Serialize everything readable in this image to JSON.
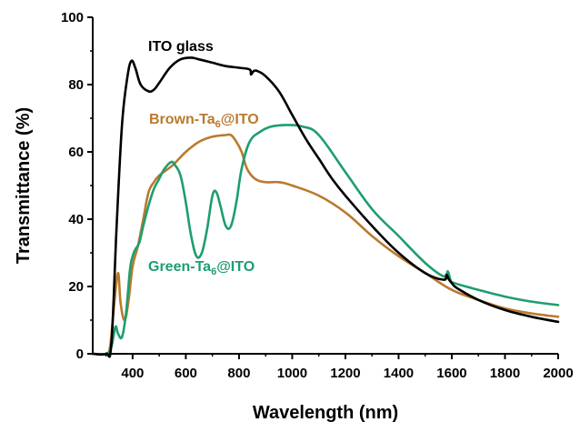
{
  "chart_data": {
    "type": "line",
    "xlabel": "Wavelength (nm)",
    "ylabel": "Transmittance (%)",
    "xlim": [
      250,
      2000
    ],
    "ylim": [
      0,
      100
    ],
    "x_ticks": [
      400,
      600,
      800,
      1000,
      1200,
      1400,
      1600,
      1800,
      2000
    ],
    "y_ticks": [
      0,
      20,
      40,
      60,
      80,
      100
    ],
    "grid": false,
    "legend": "inline labels",
    "series": [
      {
        "name": "ITO glass",
        "label_main": "ITO glass",
        "label_sub": "",
        "label_suffix": "",
        "color": "#000000",
        "x": [
          250,
          300,
          320,
          340,
          360,
          380,
          395,
          410,
          430,
          460,
          480,
          500,
          540,
          580,
          620,
          650,
          700,
          750,
          800,
          840,
          845,
          855,
          870,
          900,
          950,
          1000,
          1050,
          1100,
          1150,
          1200,
          1300,
          1400,
          1500,
          1570,
          1580,
          1590,
          1600,
          1620,
          1700,
          1800,
          1900,
          2000
        ],
        "y": [
          0,
          0,
          3,
          38,
          68,
          82,
          87,
          85,
          80,
          78,
          78.5,
          80.5,
          85,
          87.5,
          88,
          87.5,
          86.5,
          85.5,
          85,
          84.5,
          83,
          84,
          84,
          82.5,
          78,
          71,
          64,
          58,
          52,
          47,
          38,
          30,
          24,
          22,
          23.5,
          22,
          21,
          19.5,
          16,
          13,
          11,
          9.5
        ]
      },
      {
        "name": "Brown-Ta6@ITO",
        "label_main": "Brown-Ta",
        "label_sub": "6",
        "label_suffix": "@ITO",
        "color": "#B97A2E",
        "x": [
          250,
          300,
          315,
          330,
          345,
          355,
          370,
          385,
          400,
          420,
          440,
          460,
          480,
          500,
          550,
          600,
          650,
          700,
          750,
          770,
          790,
          810,
          830,
          860,
          900,
          950,
          1000,
          1100,
          1200,
          1300,
          1400,
          1500,
          1600,
          1700,
          1800,
          1900,
          2000
        ],
        "y": [
          0,
          0,
          2,
          14,
          24,
          15,
          10,
          16,
          26,
          32,
          40,
          48,
          51,
          53,
          56,
          60,
          63,
          64.5,
          65,
          65,
          63,
          60,
          55,
          52,
          51,
          51,
          50,
          47,
          42,
          35,
          29,
          24,
          19,
          16,
          13.5,
          12,
          11
        ]
      },
      {
        "name": "Green-Ta6@ITO",
        "label_main": "Green-Ta",
        "label_sub": "6",
        "label_suffix": "@ITO",
        "color": "#1E9E6E",
        "x": [
          250,
          300,
          320,
          335,
          345,
          360,
          375,
          390,
          400,
          410,
          425,
          440,
          460,
          480,
          500,
          520,
          545,
          560,
          580,
          600,
          620,
          640,
          660,
          680,
          700,
          715,
          730,
          750,
          770,
          790,
          810,
          840,
          880,
          920,
          980,
          1040,
          1100,
          1200,
          1300,
          1400,
          1500,
          1570,
          1585,
          1595,
          1610,
          1700,
          1800,
          1900,
          2000
        ],
        "y": [
          0,
          0,
          2,
          8,
          6,
          5,
          12,
          25,
          29,
          31,
          33,
          38,
          44,
          49,
          52,
          55,
          57,
          56,
          53,
          45,
          35,
          29,
          30,
          37,
          47,
          48,
          44,
          38,
          38,
          45,
          55,
          63,
          66,
          67.5,
          68,
          67.5,
          65,
          54,
          43,
          35,
          27,
          23,
          24.5,
          22,
          21,
          19,
          17,
          15.5,
          14.5
        ]
      }
    ]
  }
}
